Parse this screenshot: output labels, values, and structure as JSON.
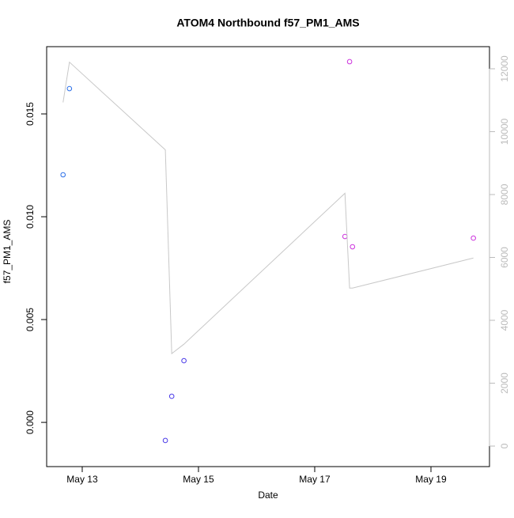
{
  "chart_data": {
    "type": "scatter",
    "title": "ATOM4 Northbound f57_PM1_AMS",
    "x_label": "Date",
    "y_label": "f57_PM1_AMS",
    "xlim": [
      12.388,
      20.007
    ],
    "xticks": [
      {
        "value": 13,
        "label": "May 13"
      },
      {
        "value": 15,
        "label": "May 15"
      },
      {
        "value": 17,
        "label": "May 17"
      },
      {
        "value": 19,
        "label": "May 19"
      }
    ],
    "ylim": [
      -0.00215,
      0.01827
    ],
    "yticks": [
      {
        "value": 0,
        "label": "0.000"
      },
      {
        "value": 0.005,
        "label": "0.005"
      },
      {
        "value": 0.01,
        "label": "0.010"
      },
      {
        "value": 0.015,
        "label": "0.015"
      }
    ],
    "y2lim": [
      -653,
      12703
    ],
    "y2ticks": [
      0,
      2000,
      4000,
      6000,
      8000,
      10000,
      12000
    ],
    "y2_color": "#bbbbbb",
    "series": [
      {
        "type": "scatter",
        "axis": "y",
        "x": [
          12.67,
          12.78,
          14.43,
          14.54,
          14.75,
          17.52,
          17.6,
          17.65,
          19.73
        ],
        "values": [
          0.01204,
          0.01623,
          -0.00088,
          0.00127,
          0.003,
          0.00904,
          0.01754,
          0.00854,
          0.00896
        ],
        "colors": [
          "#2b6fe8",
          "#2b6fe8",
          "#4a3ae8",
          "#4a3ae8",
          "#4a3ae8",
          "#cc33dd",
          "#cc33dd",
          "#cc33dd",
          "#cc33dd"
        ]
      },
      {
        "type": "line",
        "axis": "y2",
        "color": "#c8c8c8",
        "x": [
          12.67,
          12.78,
          14.43,
          14.54,
          14.75,
          17.52,
          17.6,
          17.65,
          19.73
        ],
        "values": [
          10930,
          12211,
          9422,
          2940,
          3241,
          8040,
          5025,
          5025,
          5980
        ]
      }
    ]
  }
}
